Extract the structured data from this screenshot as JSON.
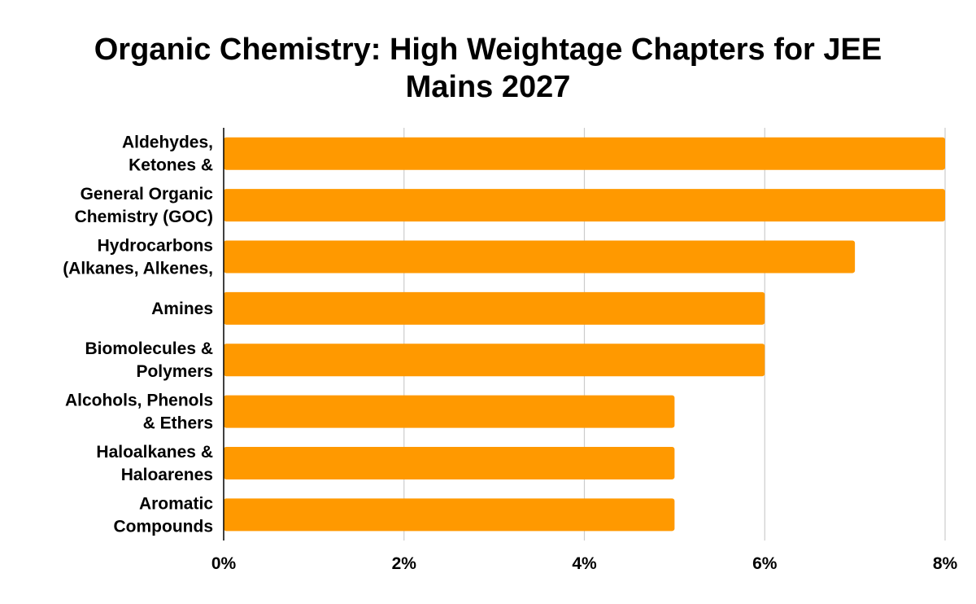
{
  "chart_data": {
    "type": "bar",
    "orientation": "horizontal",
    "title": "Organic Chemistry: High Weightage Chapters for JEE Mains 2027",
    "categories": [
      [
        "Aldehydes,",
        "Ketones &"
      ],
      [
        "General Organic",
        "Chemistry (GOC)"
      ],
      [
        "Hydrocarbons",
        "(Alkanes, Alkenes,"
      ],
      [
        "Amines"
      ],
      [
        "Biomolecules &",
        "Polymers"
      ],
      [
        "Alcohols, Phenols",
        "& Ethers"
      ],
      [
        "Haloalkanes &",
        "Haloarenes"
      ],
      [
        "Aromatic",
        "Compounds"
      ]
    ],
    "values": [
      8,
      8,
      7,
      6,
      6,
      5,
      5,
      5
    ],
    "xlim": [
      0,
      8
    ],
    "xticks": [
      "0%",
      "2%",
      "4%",
      "6%",
      "8%"
    ],
    "grid": true,
    "bar_color": "#ff9900"
  }
}
